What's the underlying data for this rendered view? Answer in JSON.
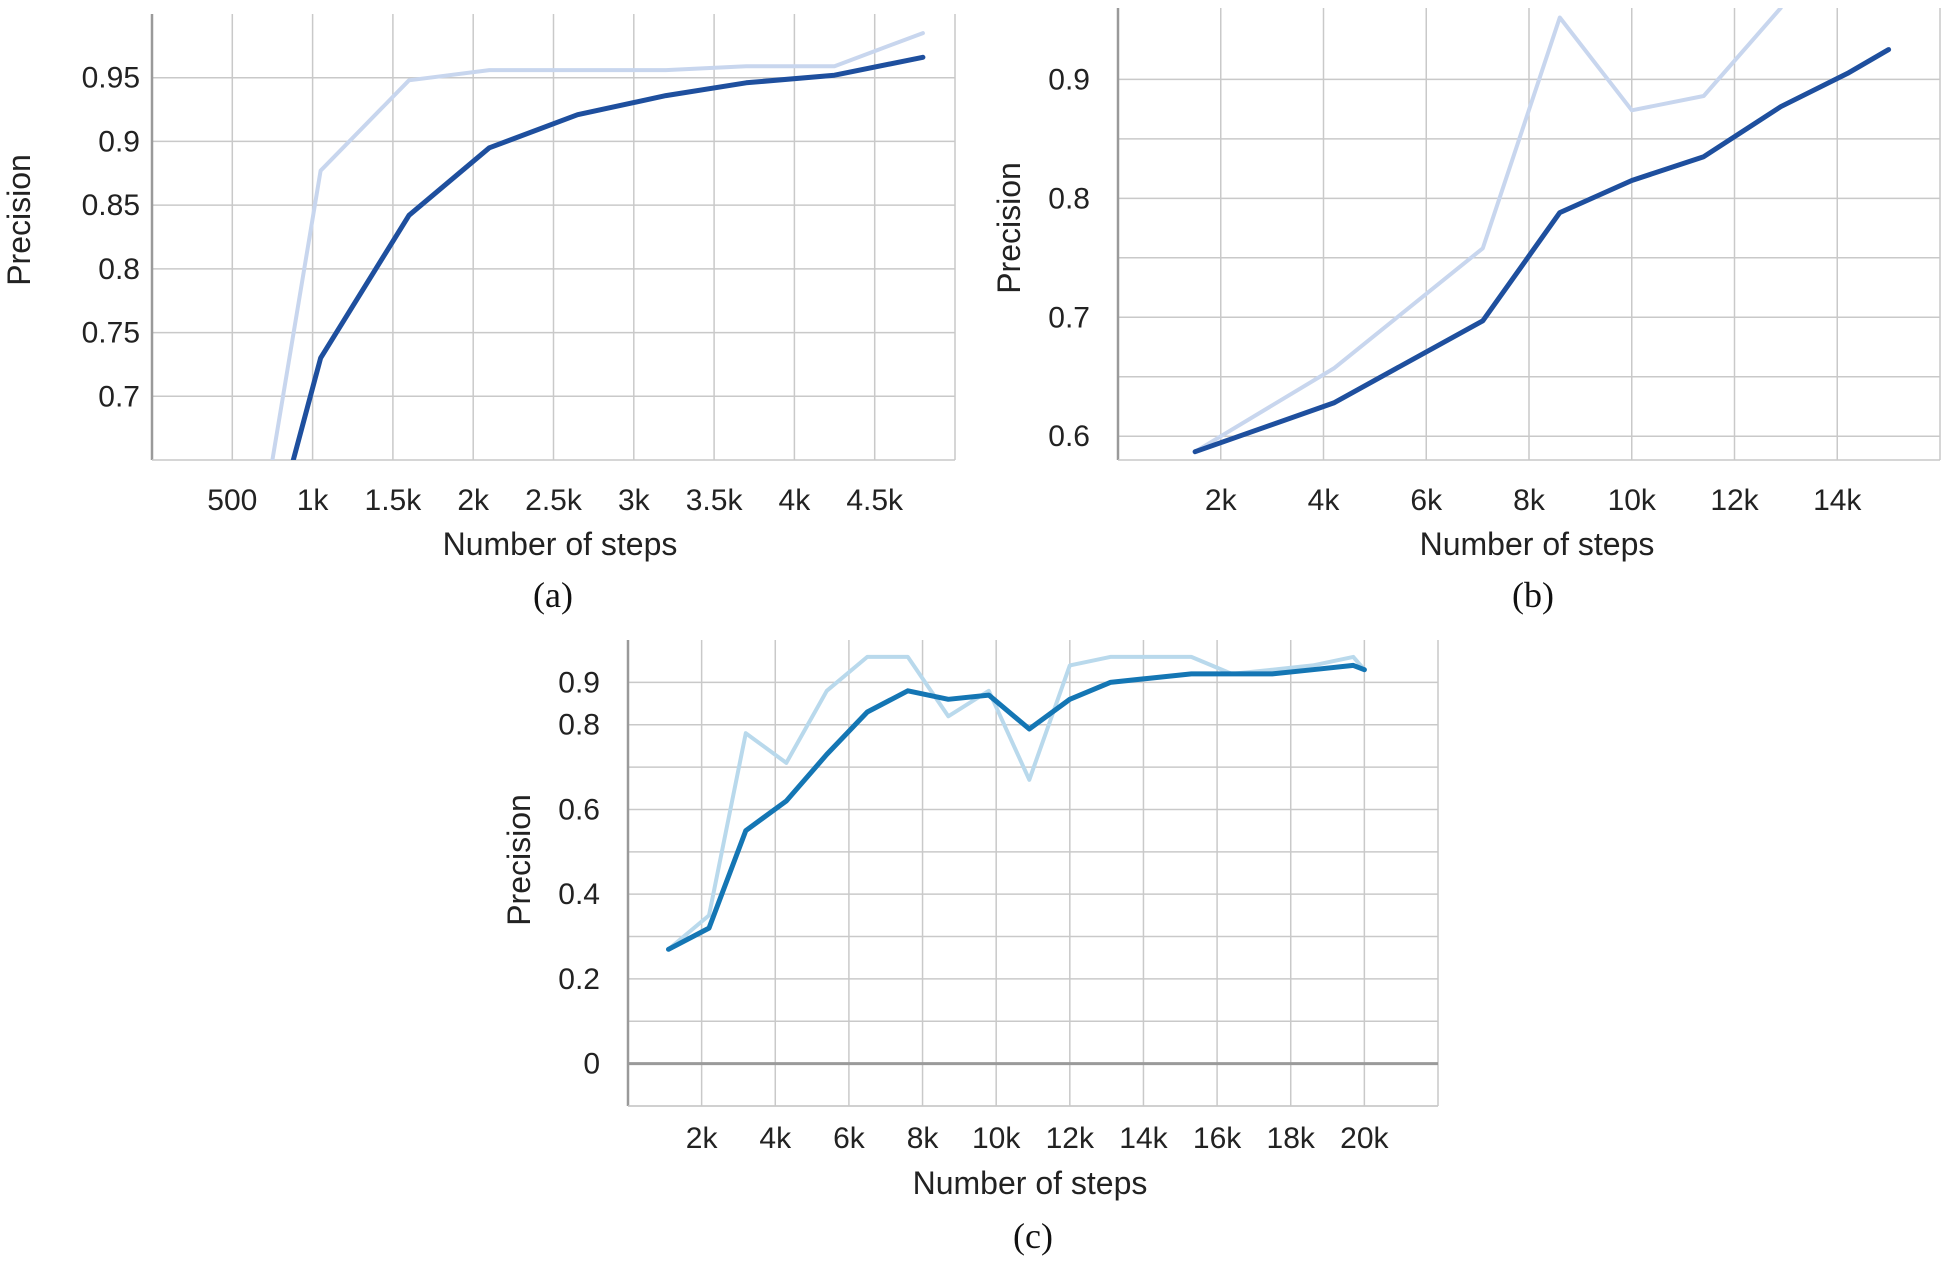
{
  "colors": {
    "grid": "#c9c9c9",
    "axis": "#9a9a9a",
    "zero_line": "#9a9a9a",
    "raw_ab": "#c8d6ee",
    "smooth_ab": "#1e4f9e",
    "raw_c": "#b9d9ec",
    "smooth_c": "#1476b4"
  },
  "chart_data": [
    {
      "type": "line",
      "caption": "(a)",
      "xlabel": "Number of steps",
      "ylabel": "Precision",
      "xlim": [
        0,
        5000
      ],
      "ylim": [
        0.65,
        1.0
      ],
      "grid": true,
      "x_ticks": [
        500,
        1000,
        1500,
        2000,
        2500,
        3000,
        3500,
        4000,
        4500
      ],
      "x_tick_labels": [
        "500",
        "1k",
        "1.5k",
        "2k",
        "2.5k",
        "3k",
        "3.5k",
        "4k",
        "4.5k"
      ],
      "y_ticks": [
        0.7,
        0.75,
        0.8,
        0.85,
        0.9,
        0.95
      ],
      "y_tick_labels": [
        "0.7",
        "0.75",
        "0.8",
        "0.85",
        "0.9",
        "0.95"
      ],
      "series": [
        {
          "role": "raw",
          "x": [
            750,
            1050,
            1600,
            2100,
            2650,
            3200,
            3700,
            4250,
            4800
          ],
          "y": [
            0.65,
            0.877,
            0.948,
            0.956,
            0.956,
            0.956,
            0.959,
            0.959,
            0.985
          ]
        },
        {
          "role": "smoothed",
          "x": [
            880,
            1050,
            1600,
            2100,
            2650,
            3200,
            3700,
            4250,
            4800
          ],
          "y": [
            0.65,
            0.73,
            0.842,
            0.895,
            0.921,
            0.936,
            0.946,
            0.952,
            0.966
          ]
        }
      ]
    },
    {
      "type": "line",
      "caption": "(b)",
      "xlabel": "Number of steps",
      "ylabel": "Precision",
      "xlim": [
        0,
        16000
      ],
      "ylim": [
        0.58,
        0.96
      ],
      "grid": true,
      "x_ticks": [
        2000,
        4000,
        6000,
        8000,
        10000,
        12000,
        14000
      ],
      "x_tick_labels": [
        "2k",
        "4k",
        "6k",
        "8k",
        "10k",
        "12k",
        "14k"
      ],
      "y_ticks": [
        0.6,
        0.7,
        0.8,
        0.9
      ],
      "y_tick_labels": [
        "0.6",
        "0.7",
        "0.8",
        "0.9"
      ],
      "series": [
        {
          "role": "raw",
          "x": [
            1500,
            4200,
            7100,
            8600,
            10000,
            11400,
            12900
          ],
          "y": [
            0.587,
            0.657,
            0.758,
            0.952,
            0.874,
            0.886,
            0.96
          ]
        },
        {
          "role": "smoothed",
          "x": [
            1500,
            4200,
            7100,
            8600,
            10000,
            11400,
            12900,
            14200,
            15000
          ],
          "y": [
            0.587,
            0.628,
            0.697,
            0.788,
            0.815,
            0.835,
            0.877,
            0.905,
            0.925
          ]
        }
      ]
    },
    {
      "type": "line",
      "caption": "(c)",
      "xlabel": "Number of steps",
      "ylabel": "Precision",
      "xlim": [
        0,
        22000
      ],
      "ylim": [
        -0.1,
        1.0
      ],
      "grid": true,
      "x_ticks": [
        2000,
        4000,
        6000,
        8000,
        10000,
        12000,
        14000,
        16000,
        18000,
        20000
      ],
      "x_tick_labels": [
        "2k",
        "4k",
        "6k",
        "8k",
        "10k",
        "12k",
        "14k",
        "16k",
        "18k",
        "20k"
      ],
      "y_ticks": [
        0,
        0.2,
        0.4,
        0.6,
        0.8
      ],
      "y_tick_labels": [
        "0",
        "0.2",
        "0.4",
        "0.6",
        "0.8"
      ],
      "y_top_label": "0.9",
      "y_top_value": 0.9,
      "series": [
        {
          "role": "raw",
          "x": [
            1100,
            2200,
            3200,
            4300,
            5400,
            6500,
            7600,
            8700,
            9800,
            10900,
            12000,
            13100,
            14200,
            15300,
            16400,
            17500,
            18600,
            19700,
            20000
          ],
          "y": [
            0.27,
            0.35,
            0.78,
            0.71,
            0.88,
            0.96,
            0.96,
            0.82,
            0.88,
            0.67,
            0.94,
            0.96,
            0.96,
            0.96,
            0.92,
            0.93,
            0.94,
            0.96,
            0.93
          ]
        },
        {
          "role": "smoothed",
          "x": [
            1100,
            2200,
            3200,
            4300,
            5400,
            6500,
            7600,
            8700,
            9800,
            10900,
            12000,
            13100,
            14200,
            15300,
            16400,
            17500,
            18600,
            19700,
            20000
          ],
          "y": [
            0.27,
            0.32,
            0.55,
            0.62,
            0.73,
            0.83,
            0.88,
            0.86,
            0.87,
            0.79,
            0.86,
            0.9,
            0.91,
            0.92,
            0.92,
            0.92,
            0.93,
            0.94,
            0.93
          ]
        }
      ]
    }
  ]
}
